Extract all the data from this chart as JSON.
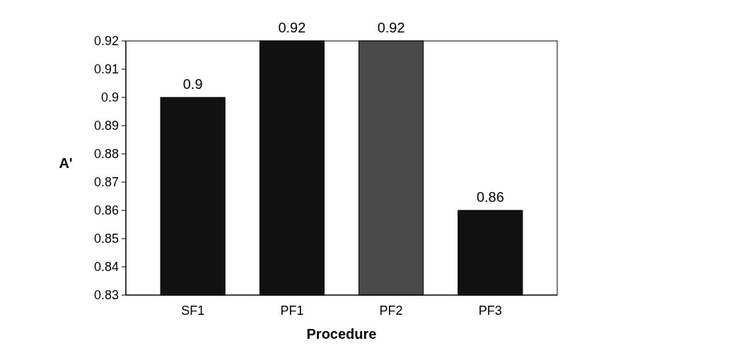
{
  "chart_data": {
    "type": "bar",
    "xlabel": "Procedure",
    "ylabel": "A'",
    "categories": [
      "SF1",
      "PF1",
      "PF2",
      "PF3"
    ],
    "values": [
      0.9,
      0.92,
      0.92,
      0.86
    ],
    "colors": [
      "#111111",
      "#111111",
      "#4a4a4a",
      "#111111"
    ],
    "ylim": [
      0.83,
      0.92
    ],
    "yticks": [
      0.83,
      0.84,
      0.85,
      0.86,
      0.87,
      0.88,
      0.89,
      0.9,
      0.91,
      0.92
    ],
    "data_labels": true
  }
}
